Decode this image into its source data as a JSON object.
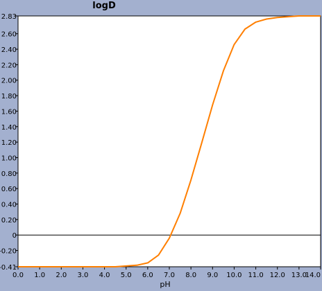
{
  "chart_data": {
    "type": "line",
    "title": "logD",
    "xlabel": "pH",
    "ylabel": "",
    "xlim": [
      0.0,
      14.0
    ],
    "ylim": [
      -0.41,
      2.83
    ],
    "x_ticks": [
      "0.0",
      "1.0",
      "2.0",
      "3.0",
      "4.0",
      "5.0",
      "6.0",
      "7.0",
      "8.0",
      "9.0",
      "10.0",
      "11.0",
      "12.0",
      "13.0",
      "14.0"
    ],
    "y_ticks": [
      {
        "value": -0.41,
        "label": "-0.41"
      },
      {
        "value": -0.2,
        "label": "-0.20"
      },
      {
        "value": 0,
        "label": "0"
      },
      {
        "value": 0.2,
        "label": "0.20"
      },
      {
        "value": 0.4,
        "label": "0.40"
      },
      {
        "value": 0.6,
        "label": "0.60"
      },
      {
        "value": 0.8,
        "label": "0.80"
      },
      {
        "value": 1.0,
        "label": "1.00"
      },
      {
        "value": 1.2,
        "label": "1.20"
      },
      {
        "value": 1.4,
        "label": "1.40"
      },
      {
        "value": 1.6,
        "label": "1.60"
      },
      {
        "value": 1.8,
        "label": "1.80"
      },
      {
        "value": 2.0,
        "label": "2.00"
      },
      {
        "value": 2.2,
        "label": "2.20"
      },
      {
        "value": 2.4,
        "label": "2.40"
      },
      {
        "value": 2.6,
        "label": "2.60"
      },
      {
        "value": 2.83,
        "label": "2.83"
      }
    ],
    "grid": false,
    "reference_line_y": 0,
    "series": [
      {
        "color": "#ff7f00",
        "x": [
          0.0,
          1.0,
          2.0,
          3.0,
          4.0,
          4.5,
          5.0,
          5.5,
          6.0,
          6.5,
          7.0,
          7.5,
          8.0,
          8.5,
          9.0,
          9.5,
          10.0,
          10.5,
          11.0,
          11.5,
          12.0,
          12.5,
          13.0,
          14.0
        ],
        "y": [
          -0.41,
          -0.41,
          -0.41,
          -0.41,
          -0.41,
          -0.41,
          -0.4,
          -0.39,
          -0.36,
          -0.26,
          -0.04,
          0.28,
          0.71,
          1.19,
          1.68,
          2.12,
          2.46,
          2.66,
          2.75,
          2.79,
          2.81,
          2.82,
          2.83,
          2.83
        ]
      }
    ]
  }
}
